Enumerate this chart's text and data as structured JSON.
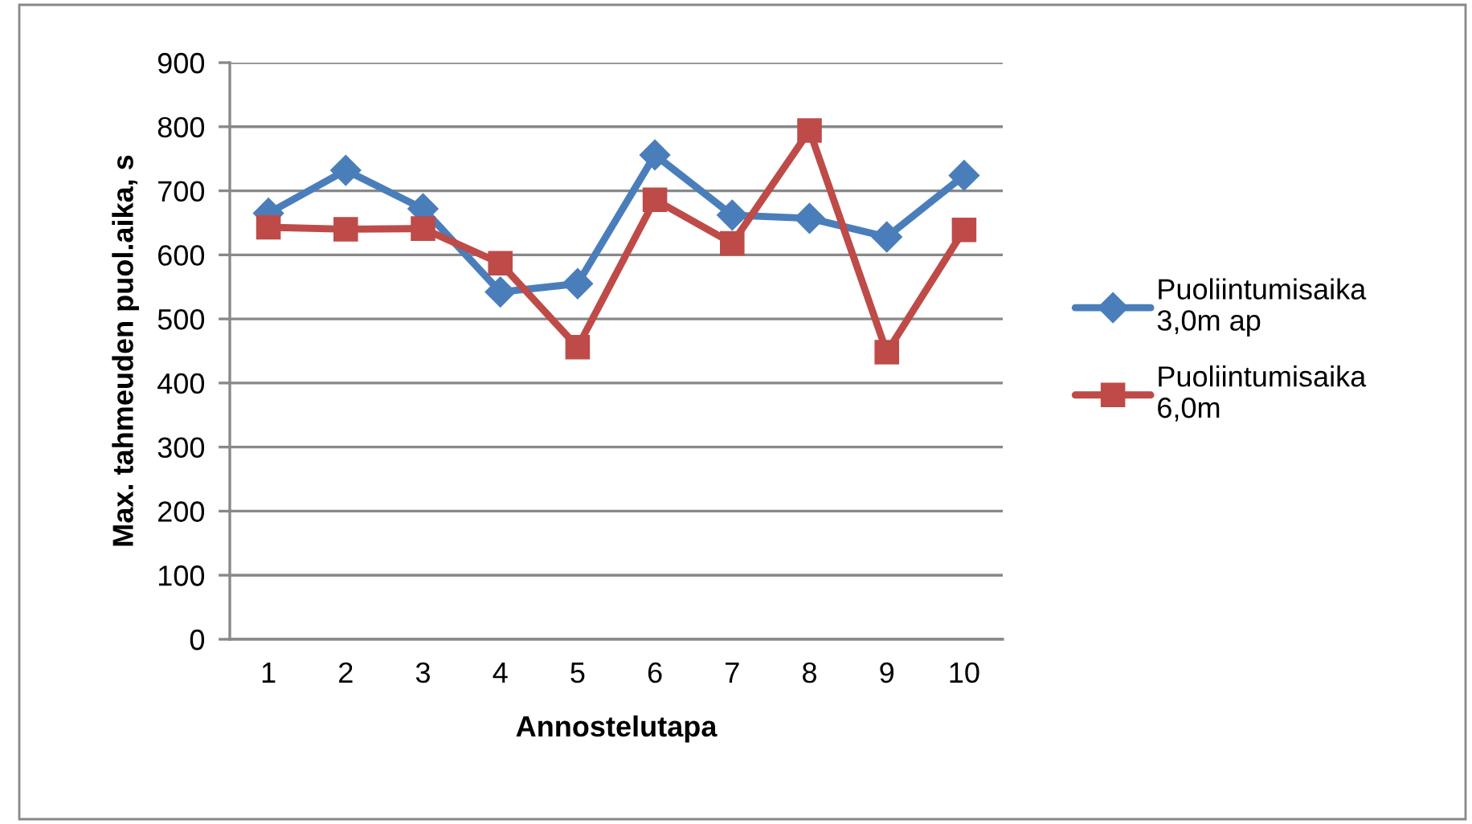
{
  "chart_data": {
    "type": "line",
    "xlabel": "Annostelutapa",
    "ylabel": "Max. tahmeuden puol.aika, s",
    "categories": [
      "1",
      "2",
      "3",
      "4",
      "5",
      "6",
      "7",
      "8",
      "9",
      "10"
    ],
    "series": [
      {
        "name": "Puoliintumisaika 3,0m ap",
        "color": "#4a7ebb",
        "marker": "diamond",
        "values": [
          665,
          732,
          672,
          542,
          555,
          756,
          662,
          657,
          628,
          724
        ]
      },
      {
        "name": "Puoliintumisaika 6,0m",
        "color": "#be4b48",
        "marker": "square",
        "values": [
          643,
          640,
          641,
          587,
          456,
          686,
          618,
          794,
          448,
          639
        ]
      }
    ],
    "ylim": [
      0,
      900
    ],
    "yticks": [
      0,
      100,
      200,
      300,
      400,
      500,
      600,
      700,
      800,
      900
    ],
    "grid": "y",
    "legend": "right",
    "line_style": "solid"
  }
}
